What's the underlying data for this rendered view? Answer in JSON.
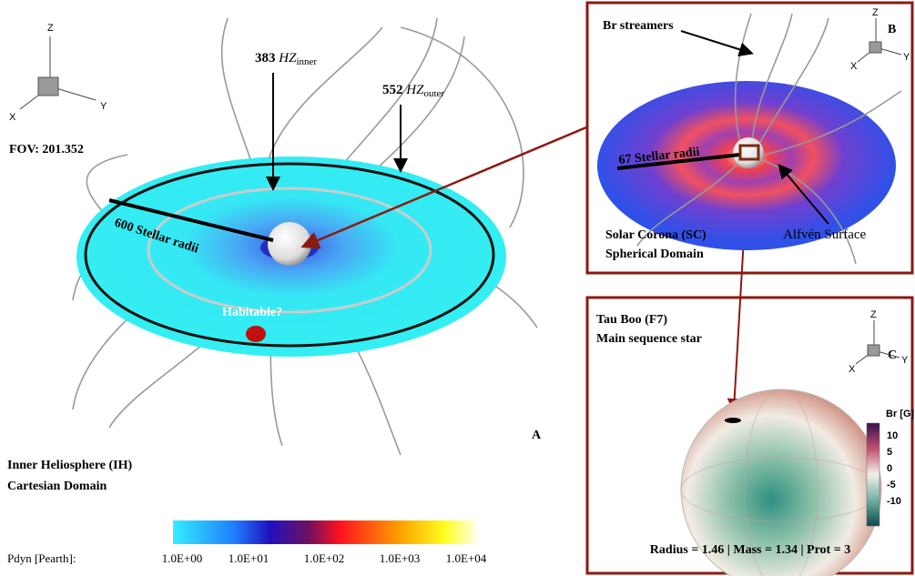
{
  "triad": {
    "z": "Z",
    "x": "X",
    "y": "Y"
  },
  "panel_a": {
    "hz_inner": {
      "value": "383",
      "label": "HZ",
      "sub": "inner"
    },
    "hz_outer": {
      "value": "552",
      "label": "HZ",
      "sub": "outer"
    },
    "fov": "FOV: 201.352",
    "radii": "600 Stellar radii",
    "habitable": "Habitable?",
    "letter": "A",
    "domain": [
      "Inner Heliosphere (IH)",
      "Cartesian Domain"
    ],
    "colorbar": {
      "label": "Pdyn [Pearth]:",
      "ticks": [
        "1.0E+00",
        "1.0E+01",
        "1.0E+02",
        "1.0E+03",
        "1.0E+04"
      ]
    }
  },
  "panel_b": {
    "streamers": "Br streamers",
    "letter": "B",
    "radii": "67 Stellar radii",
    "domain": [
      "Solar Corona (SC)",
      "Spherical Domain"
    ],
    "alfven": "Alfvén Surface"
  },
  "panel_c": {
    "star": [
      "Tau Boo (F7)",
      "Main sequence star"
    ],
    "letter": "C",
    "colorbar": {
      "label": "Br [G]",
      "ticks": [
        "10",
        "5",
        "0",
        "-5",
        "-10"
      ]
    },
    "params": "Radius = 1.46 | Mass = 1.34 | Prot = 3"
  }
}
